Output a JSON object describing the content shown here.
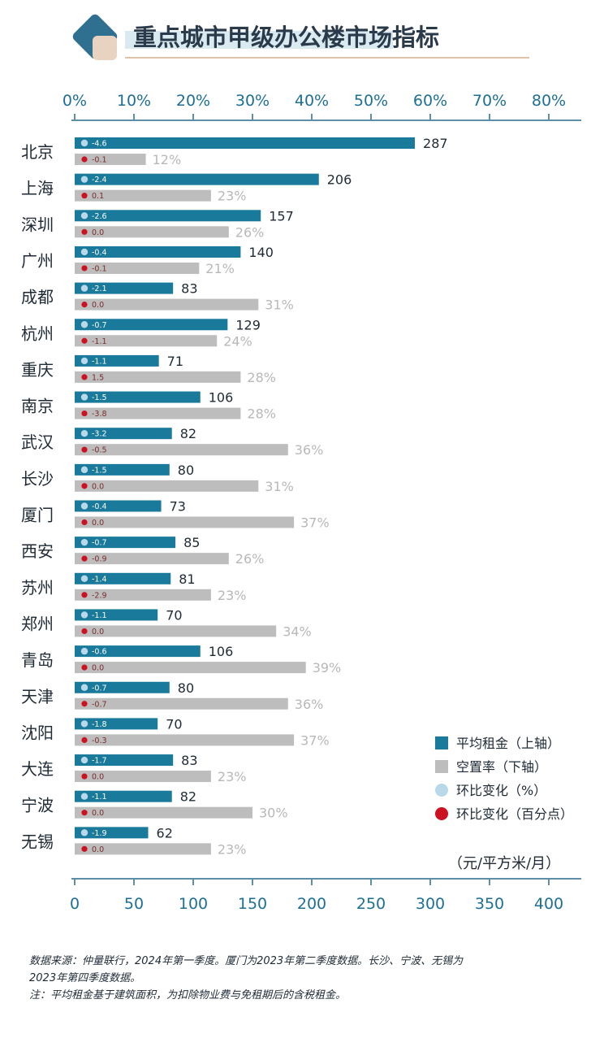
{
  "title": "重点城市甲级办公楼市场指标",
  "colors": {
    "rent": "#1a7a9c",
    "vacancy": "#bdbdbd",
    "pct_dot": "#b9d9ea",
    "point_dot": "#cc1122",
    "axis": "#5d8fa8",
    "title_underline": "#e0c2a8",
    "logo_dark": "#2f6f8f",
    "logo_light": "#e8d2c0"
  },
  "unit": "（元/平方米/月）",
  "legend": [
    {
      "label": "平均租金（上轴）",
      "marker": "square",
      "color": "#1a7a9c"
    },
    {
      "label": "空置率（下轴）",
      "marker": "square",
      "color": "#bdbdbd"
    },
    {
      "label": "环比变化（%）",
      "marker": "circle",
      "color": "#b9d9ea"
    },
    {
      "label": "环比变化（百分点）",
      "marker": "circle",
      "color": "#cc1122"
    }
  ],
  "notes": [
    "数据来源：仲量联行，2024年第一季度。厦门为2023年第二季度数据。长沙、宁波、无锡为",
    "2023年第四季度数据。",
    "注：平均租金基于建筑面积，为扣除物业费与免租期后的含税租金。"
  ],
  "chart_data": {
    "type": "bar",
    "orientation": "horizontal",
    "top_axis": {
      "ticks": [
        "0%",
        "10%",
        "20%",
        "30%",
        "40%",
        "50%",
        "60%",
        "70%",
        "80%"
      ],
      "range": [
        0,
        80
      ]
    },
    "bottom_axis": {
      "ticks": [
        "0",
        "50",
        "100",
        "150",
        "200",
        "250",
        "300",
        "350",
        "400"
      ],
      "range": [
        0,
        400
      ]
    },
    "categories": [
      "北京",
      "上海",
      "深圳",
      "广州",
      "成都",
      "杭州",
      "重庆",
      "南京",
      "武汉",
      "长沙",
      "厦门",
      "西安",
      "苏州",
      "郑州",
      "青岛",
      "天津",
      "沈阳",
      "大连",
      "宁波",
      "无锡"
    ],
    "series": [
      {
        "name": "平均租金（上轴）",
        "values": [
          287,
          206,
          157,
          140,
          83,
          129,
          71,
          106,
          82,
          80,
          73,
          85,
          81,
          70,
          106,
          80,
          70,
          83,
          82,
          62
        ]
      },
      {
        "name": "空置率（下轴）",
        "values": [
          12,
          23,
          26,
          21,
          31,
          24,
          28,
          28,
          36,
          31,
          37,
          26,
          23,
          34,
          39,
          36,
          37,
          23,
          30,
          23
        ]
      },
      {
        "name": "环比变化（%）",
        "values": [
          -4.6,
          -2.4,
          -2.6,
          -0.4,
          -2.1,
          -0.7,
          -1.1,
          -1.5,
          -3.2,
          -1.5,
          -0.4,
          -0.7,
          -1.4,
          -1.1,
          -0.6,
          -0.7,
          -1.8,
          -1.7,
          -1.1,
          -1.9
        ]
      },
      {
        "name": "环比变化（百分点）",
        "values": [
          -0.1,
          0.1,
          0.0,
          -0.1,
          0.0,
          -1.1,
          1.5,
          -3.8,
          -0.5,
          0.0,
          0.0,
          -0.9,
          -2.9,
          0.0,
          0.0,
          -0.7,
          -0.3,
          0.0,
          0.0,
          0.0
        ]
      }
    ]
  }
}
